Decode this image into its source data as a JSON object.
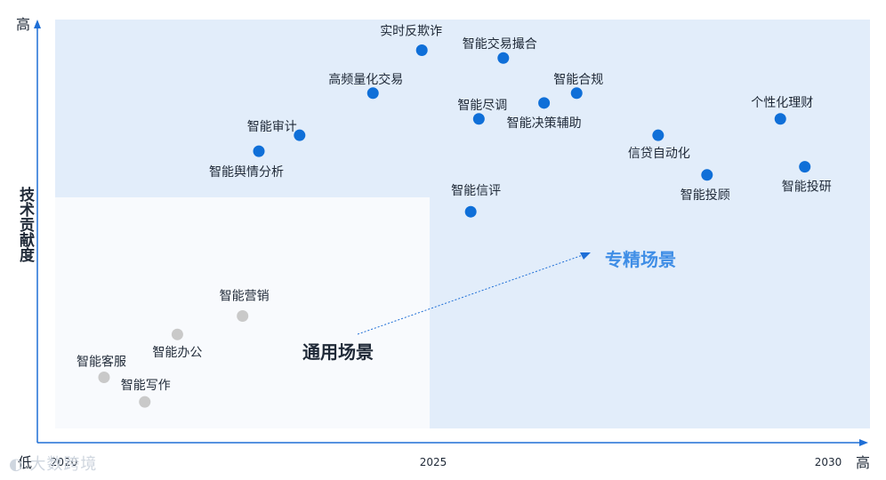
{
  "chart_data": {
    "type": "scatter",
    "xlim": [
      2020,
      2030
    ],
    "ylim": [
      0,
      100
    ],
    "x_ticks": [
      "2020",
      "2025",
      "2030"
    ],
    "axis_labels": {
      "y_label": "技术贡献度",
      "y_high": "高",
      "x_high": "高",
      "origin_low": "低"
    },
    "regions": {
      "general_label": "通用场景",
      "specialized_label": "专精场景"
    },
    "colors": {
      "specialized_point": "#0f6fd8",
      "general_point": "#c9c9c9",
      "specialized_bg": "#e2edfa",
      "general_bg": "#f8fafd",
      "accent_text": "#3f8ee6",
      "axis": "#1f6fd6"
    },
    "points": [
      {
        "name": "实时反欺诈",
        "x": 24.5,
        "y": 92.5,
        "group": "specialized"
      },
      {
        "name": "智能交易撮合",
        "x": 25.5,
        "y": 90.6,
        "group": "specialized"
      },
      {
        "name": "高频量化交易",
        "x": 23.9,
        "y": 82.0,
        "group": "specialized"
      },
      {
        "name": "智能合规",
        "x": 26.4,
        "y": 82.0,
        "group": "specialized"
      },
      {
        "name": "智能尽调",
        "x": 25.2,
        "y": 75.7,
        "group": "specialized"
      },
      {
        "name": "智能决策辅助",
        "x": 26.0,
        "y": 79.6,
        "group": "specialized"
      },
      {
        "name": "个性化理财",
        "x": 28.9,
        "y": 75.7,
        "group": "specialized"
      },
      {
        "name": "智能审计",
        "x": 23.0,
        "y": 71.7,
        "group": "specialized"
      },
      {
        "name": "信贷自动化",
        "x": 27.4,
        "y": 71.7,
        "group": "specialized"
      },
      {
        "name": "智能舆情分析",
        "x": 22.5,
        "y": 67.8,
        "group": "specialized"
      },
      {
        "name": "智能投研",
        "x": 29.2,
        "y": 64.0,
        "group": "specialized"
      },
      {
        "name": "智能投顾",
        "x": 28.0,
        "y": 62.0,
        "group": "specialized"
      },
      {
        "name": "智能信评",
        "x": 25.1,
        "y": 53.0,
        "group": "specialized"
      },
      {
        "name": "智能营销",
        "x": 22.3,
        "y": 27.5,
        "group": "general"
      },
      {
        "name": "智能办公",
        "x": 21.5,
        "y": 23.0,
        "group": "general"
      },
      {
        "name": "智能客服",
        "x": 20.6,
        "y": 12.5,
        "group": "general"
      },
      {
        "name": "智能写作",
        "x": 21.1,
        "y": 6.5,
        "group": "general"
      }
    ]
  }
}
